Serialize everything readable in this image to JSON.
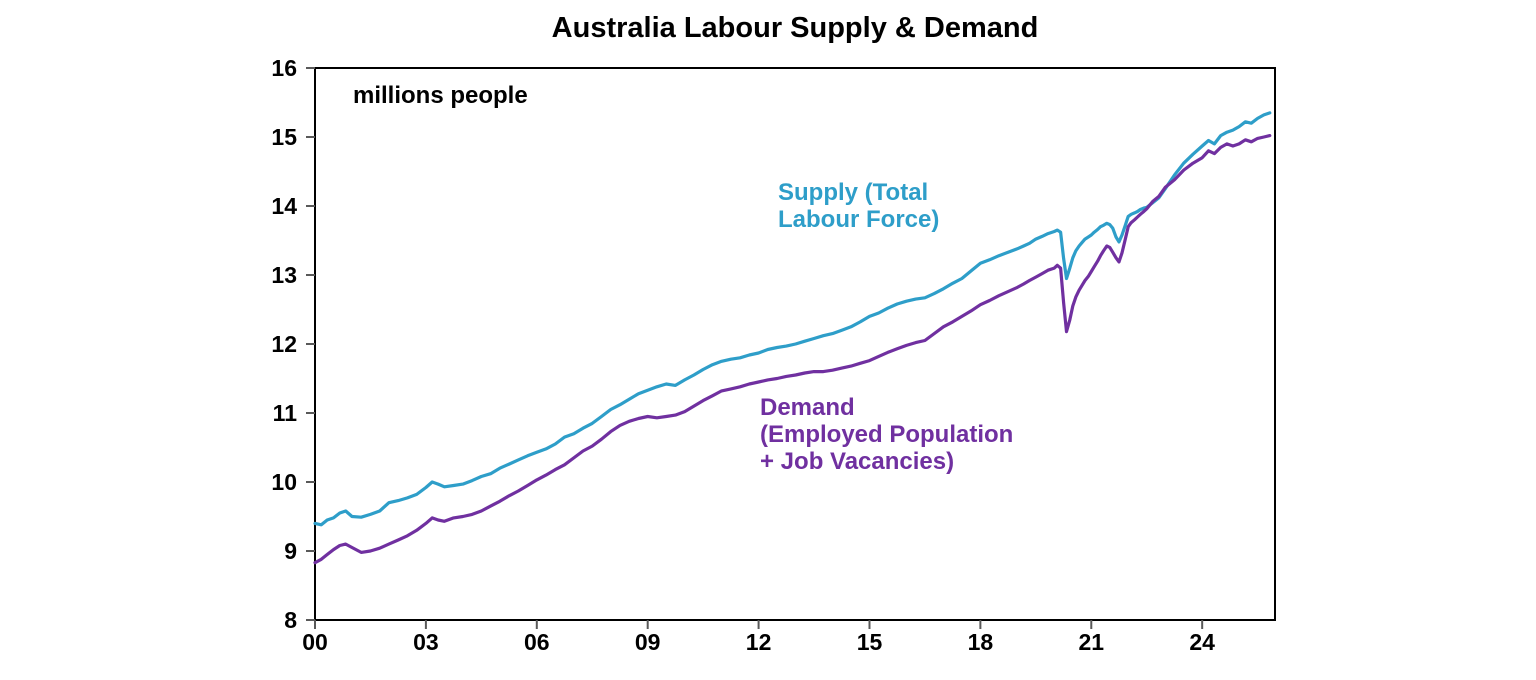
{
  "title": "Australia Labour Supply & Demand",
  "unit_label": "millions people",
  "colors": {
    "supply": "#2E9EC9",
    "demand": "#7030A0",
    "axis": "#000000",
    "tick": "#595959",
    "text": "#000000",
    "background": "#FFFFFF"
  },
  "annotations": {
    "supply": [
      "Supply (Total",
      "Labour Force)"
    ],
    "demand": [
      "Demand",
      "(Employed Population",
      "+ Job Vacancies)"
    ]
  },
  "chart_data": {
    "type": "line",
    "title": "Australia Labour Supply & Demand",
    "xlabel": "",
    "ylabel": "millions people",
    "ylim": [
      8,
      16
    ],
    "xlim": [
      2000,
      2025.97
    ],
    "grid": false,
    "legend_position": "inline-annotations",
    "y_ticks": [
      8,
      9,
      10,
      11,
      12,
      13,
      14,
      15,
      16
    ],
    "x_ticks": [
      {
        "year": 2000,
        "label": "00"
      },
      {
        "year": 2003,
        "label": "03"
      },
      {
        "year": 2006,
        "label": "06"
      },
      {
        "year": 2009,
        "label": "09"
      },
      {
        "year": 2012,
        "label": "12"
      },
      {
        "year": 2015,
        "label": "15"
      },
      {
        "year": 2018,
        "label": "18"
      },
      {
        "year": 2021,
        "label": "21"
      },
      {
        "year": 2024,
        "label": "24"
      }
    ],
    "series": [
      {
        "name": "Supply (Total Labour Force)",
        "color": "#2E9EC9",
        "points": [
          [
            2000.0,
            9.4
          ],
          [
            2000.17,
            9.38
          ],
          [
            2000.33,
            9.45
          ],
          [
            2000.5,
            9.48
          ],
          [
            2000.67,
            9.55
          ],
          [
            2000.83,
            9.58
          ],
          [
            2001.0,
            9.5
          ],
          [
            2001.25,
            9.49
          ],
          [
            2001.5,
            9.53
          ],
          [
            2001.75,
            9.58
          ],
          [
            2002.0,
            9.7
          ],
          [
            2002.25,
            9.73
          ],
          [
            2002.5,
            9.77
          ],
          [
            2002.75,
            9.82
          ],
          [
            2003.0,
            9.92
          ],
          [
            2003.17,
            10.0
          ],
          [
            2003.33,
            9.97
          ],
          [
            2003.5,
            9.93
          ],
          [
            2003.75,
            9.95
          ],
          [
            2004.0,
            9.97
          ],
          [
            2004.25,
            10.02
          ],
          [
            2004.5,
            10.08
          ],
          [
            2004.75,
            10.12
          ],
          [
            2005.0,
            10.2
          ],
          [
            2005.25,
            10.26
          ],
          [
            2005.5,
            10.32
          ],
          [
            2005.75,
            10.38
          ],
          [
            2006.0,
            10.43
          ],
          [
            2006.25,
            10.48
          ],
          [
            2006.5,
            10.55
          ],
          [
            2006.75,
            10.65
          ],
          [
            2007.0,
            10.7
          ],
          [
            2007.25,
            10.78
          ],
          [
            2007.5,
            10.85
          ],
          [
            2007.75,
            10.95
          ],
          [
            2008.0,
            11.05
          ],
          [
            2008.25,
            11.12
          ],
          [
            2008.5,
            11.2
          ],
          [
            2008.75,
            11.28
          ],
          [
            2009.0,
            11.33
          ],
          [
            2009.25,
            11.38
          ],
          [
            2009.5,
            11.42
          ],
          [
            2009.75,
            11.4
          ],
          [
            2010.0,
            11.48
          ],
          [
            2010.25,
            11.55
          ],
          [
            2010.5,
            11.63
          ],
          [
            2010.75,
            11.7
          ],
          [
            2011.0,
            11.75
          ],
          [
            2011.25,
            11.78
          ],
          [
            2011.5,
            11.8
          ],
          [
            2011.75,
            11.84
          ],
          [
            2012.0,
            11.87
          ],
          [
            2012.25,
            11.92
          ],
          [
            2012.5,
            11.95
          ],
          [
            2012.75,
            11.97
          ],
          [
            2013.0,
            12.0
          ],
          [
            2013.25,
            12.04
          ],
          [
            2013.5,
            12.08
          ],
          [
            2013.75,
            12.12
          ],
          [
            2014.0,
            12.15
          ],
          [
            2014.25,
            12.2
          ],
          [
            2014.5,
            12.25
          ],
          [
            2014.75,
            12.32
          ],
          [
            2015.0,
            12.4
          ],
          [
            2015.25,
            12.45
          ],
          [
            2015.5,
            12.52
          ],
          [
            2015.75,
            12.58
          ],
          [
            2016.0,
            12.62
          ],
          [
            2016.25,
            12.65
          ],
          [
            2016.5,
            12.67
          ],
          [
            2016.75,
            12.73
          ],
          [
            2017.0,
            12.8
          ],
          [
            2017.25,
            12.88
          ],
          [
            2017.5,
            12.95
          ],
          [
            2017.75,
            13.06
          ],
          [
            2018.0,
            13.17
          ],
          [
            2018.25,
            13.22
          ],
          [
            2018.5,
            13.28
          ],
          [
            2018.75,
            13.33
          ],
          [
            2019.0,
            13.38
          ],
          [
            2019.17,
            13.42
          ],
          [
            2019.33,
            13.46
          ],
          [
            2019.5,
            13.52
          ],
          [
            2019.67,
            13.56
          ],
          [
            2019.83,
            13.6
          ],
          [
            2020.0,
            13.63
          ],
          [
            2020.08,
            13.65
          ],
          [
            2020.17,
            13.62
          ],
          [
            2020.25,
            13.24
          ],
          [
            2020.33,
            12.95
          ],
          [
            2020.42,
            13.1
          ],
          [
            2020.5,
            13.25
          ],
          [
            2020.58,
            13.35
          ],
          [
            2020.67,
            13.42
          ],
          [
            2020.75,
            13.47
          ],
          [
            2020.83,
            13.52
          ],
          [
            2020.92,
            13.55
          ],
          [
            2021.0,
            13.58
          ],
          [
            2021.08,
            13.62
          ],
          [
            2021.17,
            13.66
          ],
          [
            2021.25,
            13.7
          ],
          [
            2021.33,
            13.72
          ],
          [
            2021.42,
            13.75
          ],
          [
            2021.5,
            13.73
          ],
          [
            2021.58,
            13.68
          ],
          [
            2021.67,
            13.55
          ],
          [
            2021.75,
            13.48
          ],
          [
            2021.83,
            13.58
          ],
          [
            2021.92,
            13.72
          ],
          [
            2022.0,
            13.85
          ],
          [
            2022.08,
            13.88
          ],
          [
            2022.17,
            13.9
          ],
          [
            2022.25,
            13.92
          ],
          [
            2022.33,
            13.95
          ],
          [
            2022.42,
            13.97
          ],
          [
            2022.5,
            13.98
          ],
          [
            2022.67,
            14.05
          ],
          [
            2022.83,
            14.12
          ],
          [
            2023.0,
            14.25
          ],
          [
            2023.25,
            14.45
          ],
          [
            2023.5,
            14.62
          ],
          [
            2023.75,
            14.75
          ],
          [
            2024.0,
            14.87
          ],
          [
            2024.17,
            14.95
          ],
          [
            2024.33,
            14.9
          ],
          [
            2024.5,
            15.02
          ],
          [
            2024.67,
            15.07
          ],
          [
            2024.83,
            15.1
          ],
          [
            2025.0,
            15.15
          ],
          [
            2025.17,
            15.22
          ],
          [
            2025.33,
            15.2
          ],
          [
            2025.5,
            15.27
          ],
          [
            2025.67,
            15.32
          ],
          [
            2025.83,
            15.35
          ]
        ]
      },
      {
        "name": "Demand (Employed Population + Job Vacancies)",
        "color": "#7030A0",
        "points": [
          [
            2000.0,
            8.83
          ],
          [
            2000.17,
            8.88
          ],
          [
            2000.33,
            8.95
          ],
          [
            2000.5,
            9.02
          ],
          [
            2000.67,
            9.08
          ],
          [
            2000.83,
            9.1
          ],
          [
            2001.0,
            9.05
          ],
          [
            2001.25,
            8.98
          ],
          [
            2001.5,
            9.0
          ],
          [
            2001.75,
            9.04
          ],
          [
            2002.0,
            9.1
          ],
          [
            2002.25,
            9.16
          ],
          [
            2002.5,
            9.22
          ],
          [
            2002.75,
            9.3
          ],
          [
            2003.0,
            9.4
          ],
          [
            2003.17,
            9.48
          ],
          [
            2003.33,
            9.45
          ],
          [
            2003.5,
            9.43
          ],
          [
            2003.75,
            9.48
          ],
          [
            2004.0,
            9.5
          ],
          [
            2004.25,
            9.53
          ],
          [
            2004.5,
            9.58
          ],
          [
            2004.75,
            9.65
          ],
          [
            2005.0,
            9.72
          ],
          [
            2005.25,
            9.8
          ],
          [
            2005.5,
            9.87
          ],
          [
            2005.75,
            9.95
          ],
          [
            2006.0,
            10.03
          ],
          [
            2006.25,
            10.1
          ],
          [
            2006.5,
            10.18
          ],
          [
            2006.75,
            10.25
          ],
          [
            2007.0,
            10.35
          ],
          [
            2007.25,
            10.45
          ],
          [
            2007.5,
            10.52
          ],
          [
            2007.75,
            10.62
          ],
          [
            2008.0,
            10.73
          ],
          [
            2008.25,
            10.82
          ],
          [
            2008.5,
            10.88
          ],
          [
            2008.75,
            10.92
          ],
          [
            2009.0,
            10.95
          ],
          [
            2009.25,
            10.93
          ],
          [
            2009.5,
            10.95
          ],
          [
            2009.75,
            10.97
          ],
          [
            2010.0,
            11.02
          ],
          [
            2010.25,
            11.1
          ],
          [
            2010.5,
            11.18
          ],
          [
            2010.75,
            11.25
          ],
          [
            2011.0,
            11.32
          ],
          [
            2011.25,
            11.35
          ],
          [
            2011.5,
            11.38
          ],
          [
            2011.75,
            11.42
          ],
          [
            2012.0,
            11.45
          ],
          [
            2012.25,
            11.48
          ],
          [
            2012.5,
            11.5
          ],
          [
            2012.75,
            11.53
          ],
          [
            2013.0,
            11.55
          ],
          [
            2013.25,
            11.58
          ],
          [
            2013.5,
            11.6
          ],
          [
            2013.75,
            11.6
          ],
          [
            2014.0,
            11.62
          ],
          [
            2014.25,
            11.65
          ],
          [
            2014.5,
            11.68
          ],
          [
            2014.75,
            11.72
          ],
          [
            2015.0,
            11.76
          ],
          [
            2015.25,
            11.82
          ],
          [
            2015.5,
            11.88
          ],
          [
            2015.75,
            11.93
          ],
          [
            2016.0,
            11.98
          ],
          [
            2016.25,
            12.02
          ],
          [
            2016.5,
            12.05
          ],
          [
            2016.75,
            12.15
          ],
          [
            2017.0,
            12.25
          ],
          [
            2017.25,
            12.32
          ],
          [
            2017.5,
            12.4
          ],
          [
            2017.75,
            12.48
          ],
          [
            2018.0,
            12.57
          ],
          [
            2018.25,
            12.63
          ],
          [
            2018.5,
            12.7
          ],
          [
            2018.75,
            12.76
          ],
          [
            2019.0,
            12.82
          ],
          [
            2019.17,
            12.87
          ],
          [
            2019.33,
            12.92
          ],
          [
            2019.5,
            12.97
          ],
          [
            2019.67,
            13.02
          ],
          [
            2019.83,
            13.07
          ],
          [
            2020.0,
            13.1
          ],
          [
            2020.08,
            13.14
          ],
          [
            2020.17,
            13.1
          ],
          [
            2020.25,
            12.6
          ],
          [
            2020.33,
            12.18
          ],
          [
            2020.42,
            12.35
          ],
          [
            2020.5,
            12.55
          ],
          [
            2020.58,
            12.68
          ],
          [
            2020.67,
            12.78
          ],
          [
            2020.75,
            12.85
          ],
          [
            2020.83,
            12.92
          ],
          [
            2020.92,
            12.98
          ],
          [
            2021.0,
            13.05
          ],
          [
            2021.08,
            13.12
          ],
          [
            2021.17,
            13.2
          ],
          [
            2021.25,
            13.28
          ],
          [
            2021.33,
            13.35
          ],
          [
            2021.42,
            13.42
          ],
          [
            2021.5,
            13.4
          ],
          [
            2021.58,
            13.33
          ],
          [
            2021.67,
            13.25
          ],
          [
            2021.75,
            13.19
          ],
          [
            2021.83,
            13.32
          ],
          [
            2021.92,
            13.52
          ],
          [
            2022.0,
            13.7
          ],
          [
            2022.08,
            13.76
          ],
          [
            2022.17,
            13.8
          ],
          [
            2022.25,
            13.84
          ],
          [
            2022.33,
            13.88
          ],
          [
            2022.42,
            13.92
          ],
          [
            2022.5,
            13.96
          ],
          [
            2022.67,
            14.07
          ],
          [
            2022.83,
            14.14
          ],
          [
            2023.0,
            14.27
          ],
          [
            2023.25,
            14.38
          ],
          [
            2023.5,
            14.52
          ],
          [
            2023.75,
            14.62
          ],
          [
            2024.0,
            14.7
          ],
          [
            2024.17,
            14.8
          ],
          [
            2024.33,
            14.76
          ],
          [
            2024.5,
            14.85
          ],
          [
            2024.67,
            14.9
          ],
          [
            2024.83,
            14.87
          ],
          [
            2025.0,
            14.9
          ],
          [
            2025.17,
            14.96
          ],
          [
            2025.33,
            14.93
          ],
          [
            2025.5,
            14.98
          ],
          [
            2025.67,
            15.0
          ],
          [
            2025.83,
            15.02
          ]
        ]
      }
    ]
  }
}
